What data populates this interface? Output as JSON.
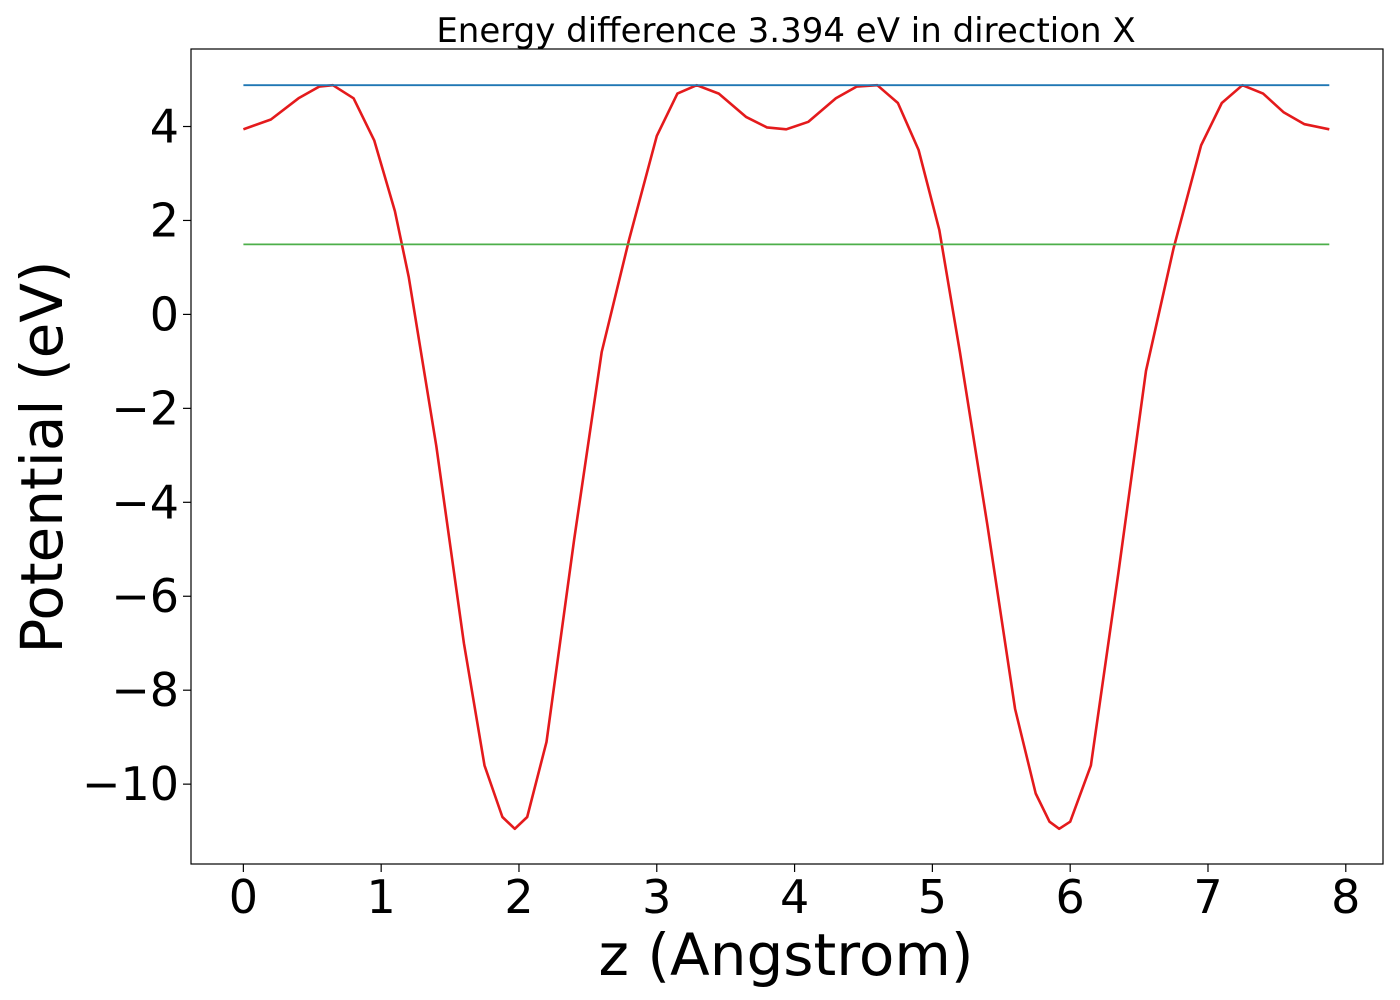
{
  "chart_data": {
    "type": "line",
    "title": "Energy difference 3.394 eV in direction X",
    "xlabel": "z (Angstrom)",
    "ylabel": "Potential (eV)",
    "xlim": [
      -0.38,
      8.27
    ],
    "ylim": [
      -11.7,
      5.65
    ],
    "xticks": [
      0,
      1,
      2,
      3,
      4,
      5,
      6,
      7,
      8
    ],
    "xtick_labels": [
      "0",
      "1",
      "2",
      "3",
      "4",
      "5",
      "6",
      "7",
      "8"
    ],
    "yticks": [
      4,
      2,
      0,
      -2,
      -4,
      -6,
      -8,
      -10
    ],
    "ytick_labels": [
      "4",
      "2",
      "0",
      "−2",
      "−4",
      "−6",
      "−8",
      "−10"
    ],
    "grid": false,
    "legend": "none",
    "series": [
      {
        "color": "#e41a1c",
        "x": [
          0.0,
          0.2,
          0.4,
          0.55,
          0.65,
          0.8,
          0.95,
          1.1,
          1.2,
          1.4,
          1.6,
          1.75,
          1.88,
          1.97,
          2.06,
          2.2,
          2.4,
          2.6,
          2.8,
          3.0,
          3.15,
          3.29,
          3.45,
          3.65,
          3.8,
          3.94,
          4.1,
          4.3,
          4.45,
          4.6,
          4.75,
          4.9,
          5.05,
          5.2,
          5.4,
          5.6,
          5.75,
          5.85,
          5.92,
          6.0,
          6.15,
          6.35,
          6.55,
          6.75,
          6.95,
          7.1,
          7.25,
          7.4,
          7.55,
          7.7,
          7.88
        ],
        "y": [
          3.94,
          4.15,
          4.6,
          4.85,
          4.88,
          4.6,
          3.7,
          2.2,
          0.8,
          -2.8,
          -7.0,
          -9.6,
          -10.7,
          -10.95,
          -10.7,
          -9.1,
          -4.8,
          -0.8,
          1.6,
          3.8,
          4.7,
          4.88,
          4.7,
          4.2,
          3.98,
          3.94,
          4.1,
          4.6,
          4.85,
          4.88,
          4.5,
          3.5,
          1.8,
          -0.8,
          -4.5,
          -8.4,
          -10.2,
          -10.8,
          -10.95,
          -10.8,
          -9.6,
          -5.5,
          -1.2,
          1.4,
          3.6,
          4.5,
          4.88,
          4.7,
          4.3,
          4.05,
          3.94
        ]
      },
      {
        "color": "#1f77b4",
        "x": [
          0.0,
          7.88
        ],
        "y": [
          4.88,
          4.88
        ]
      },
      {
        "color": "#4daf4a",
        "x": [
          0.0,
          7.88
        ],
        "y": [
          1.49,
          1.49
        ]
      }
    ]
  }
}
